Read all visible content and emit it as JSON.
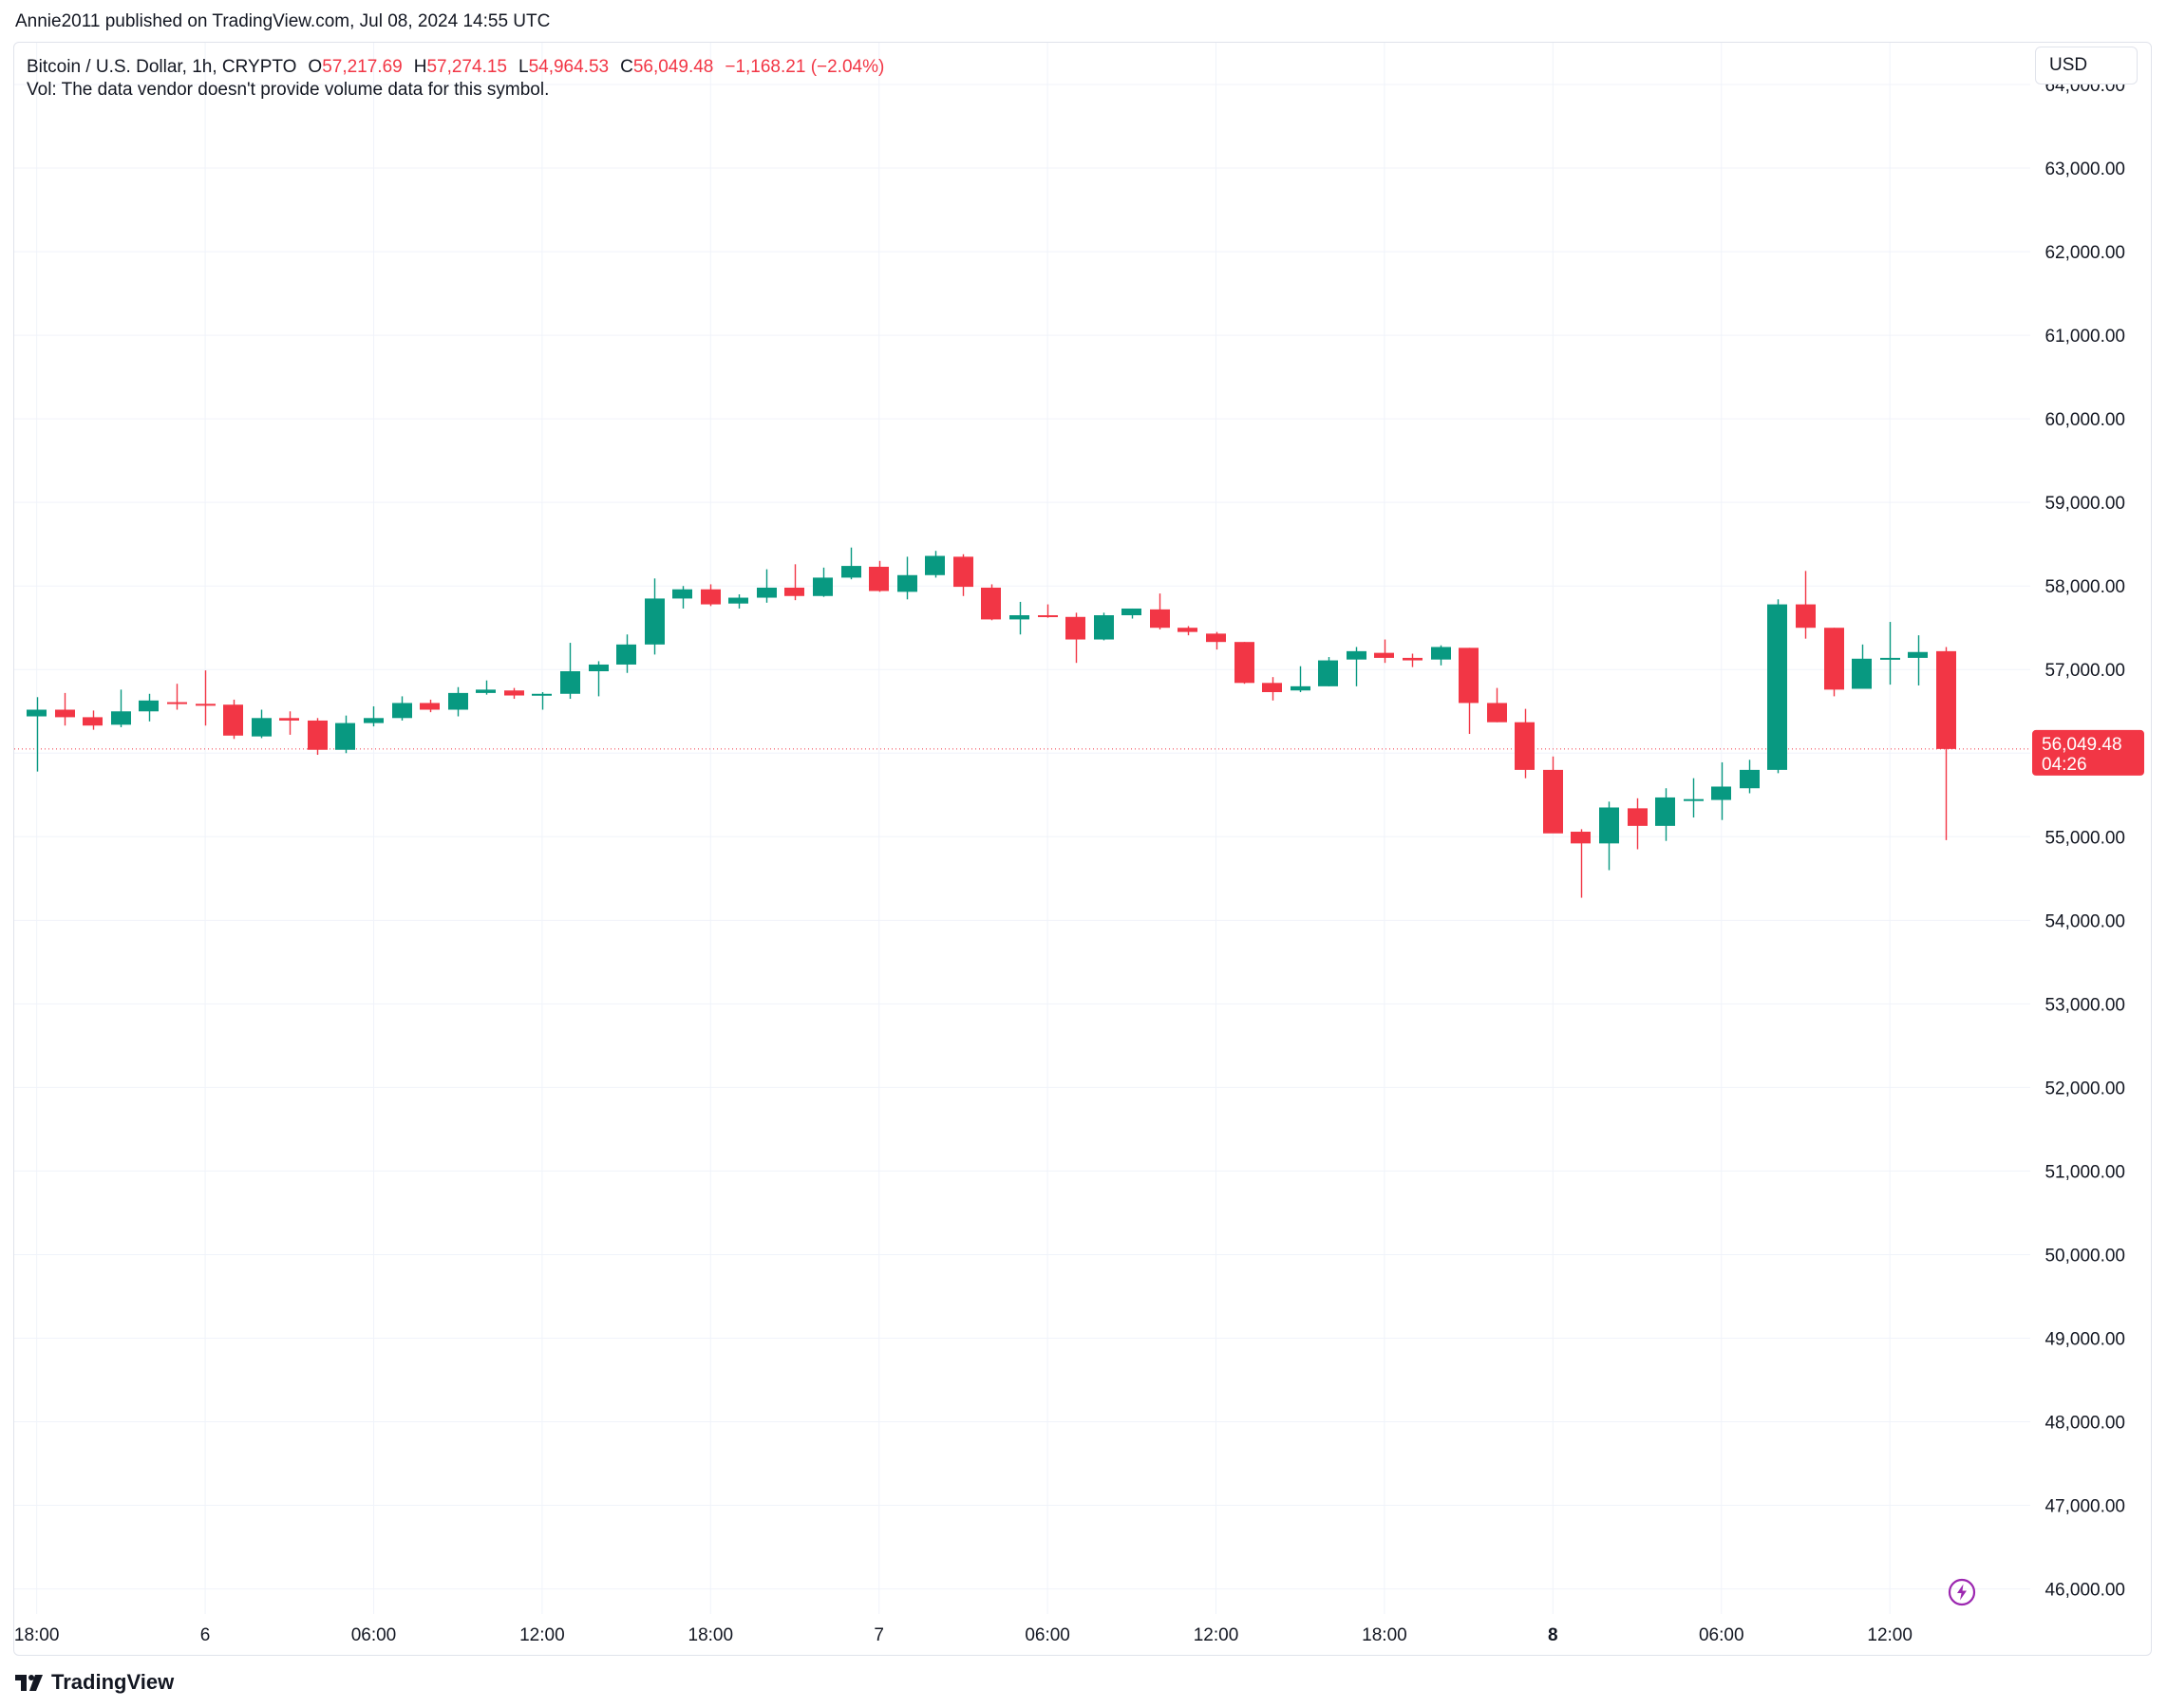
{
  "published_line": "Annie2011 published on TradingView.com, Jul 08, 2024 14:55 UTC",
  "legend": {
    "symbol": "Bitcoin / U.S. Dollar, 1h, CRYPTO",
    "o_label": "O",
    "o_value": "57,217.69",
    "h_label": "H",
    "h_value": "57,274.15",
    "l_label": "L",
    "l_value": "54,964.53",
    "c_label": "C",
    "c_value": "56,049.48",
    "change": "−1,168.21 (−2.04%)"
  },
  "volume_note": "Vol: The data vendor doesn't provide volume data for this symbol.",
  "currency_button": "USD",
  "brand": "TradingView",
  "colors": {
    "up": "#089981",
    "down": "#f23645",
    "grid": "#f0f3fa",
    "axis_text": "#131722"
  },
  "icons": {
    "logo": "tradingview-logo-icon",
    "lightning": "lightning-icon"
  },
  "chart_data": {
    "type": "candlestick",
    "symbol": "Bitcoin / U.S. Dollar",
    "interval": "1h",
    "y_axis": {
      "ylim": [
        45700,
        64500
      ],
      "ticks": [
        "64,000.00",
        "63,000.00",
        "62,000.00",
        "61,000.00",
        "60,000.00",
        "59,000.00",
        "58,000.00",
        "57,000.00",
        "56,000.00",
        "55,000.00",
        "54,000.00",
        "53,000.00",
        "52,000.00",
        "51,000.00",
        "50,000.00",
        "49,000.00",
        "48,000.00",
        "47,000.00",
        "46,000.00"
      ],
      "tick_values": [
        64000,
        63000,
        62000,
        61000,
        60000,
        59000,
        58000,
        57000,
        56000,
        55000,
        54000,
        53000,
        52000,
        51000,
        50000,
        49000,
        48000,
        47000,
        46000
      ],
      "position": "right"
    },
    "x_axis": {
      "ticks": [
        {
          "label": "18:00",
          "index": 0,
          "bold": false
        },
        {
          "label": "6",
          "index": 6,
          "bold": false
        },
        {
          "label": "06:00",
          "index": 12,
          "bold": false
        },
        {
          "label": "12:00",
          "index": 18,
          "bold": false
        },
        {
          "label": "18:00",
          "index": 24,
          "bold": false
        },
        {
          "label": "7",
          "index": 30,
          "bold": false
        },
        {
          "label": "06:00",
          "index": 36,
          "bold": false
        },
        {
          "label": "12:00",
          "index": 42,
          "bold": false
        },
        {
          "label": "18:00",
          "index": 48,
          "bold": false
        },
        {
          "label": "8",
          "index": 54,
          "bold": true
        },
        {
          "label": "06:00",
          "index": 60,
          "bold": false
        },
        {
          "label": "12:00",
          "index": 66,
          "bold": false
        }
      ],
      "range_index": [
        -0.8,
        71
      ]
    },
    "grid": true,
    "candles": [
      [
        56440,
        56670,
        55780,
        56520
      ],
      [
        56520,
        56720,
        56330,
        56430
      ],
      [
        56430,
        56510,
        56280,
        56330
      ],
      [
        56340,
        56760,
        56310,
        56500
      ],
      [
        56500,
        56710,
        56380,
        56630
      ],
      [
        56610,
        56830,
        56520,
        56590
      ],
      [
        56590,
        56990,
        56330,
        56580
      ],
      [
        56580,
        56640,
        56170,
        56210
      ],
      [
        56200,
        56520,
        56180,
        56420
      ],
      [
        56420,
        56500,
        56220,
        56390
      ],
      [
        56390,
        56420,
        55980,
        56040
      ],
      [
        56040,
        56450,
        56000,
        56360
      ],
      [
        56360,
        56560,
        56320,
        56420
      ],
      [
        56420,
        56680,
        56390,
        56600
      ],
      [
        56600,
        56640,
        56490,
        56520
      ],
      [
        56520,
        56790,
        56440,
        56720
      ],
      [
        56720,
        56870,
        56700,
        56760
      ],
      [
        56750,
        56780,
        56650,
        56690
      ],
      [
        56690,
        56730,
        56520,
        56710
      ],
      [
        56710,
        57320,
        56650,
        56980
      ],
      [
        56980,
        57100,
        56680,
        57060
      ],
      [
        57060,
        57420,
        56960,
        57300
      ],
      [
        57300,
        58090,
        57180,
        57850
      ],
      [
        57850,
        58000,
        57730,
        57960
      ],
      [
        57960,
        58020,
        57760,
        57780
      ],
      [
        57790,
        57900,
        57730,
        57860
      ],
      [
        57860,
        58200,
        57800,
        57980
      ],
      [
        57980,
        58260,
        57830,
        57880
      ],
      [
        57880,
        58220,
        57870,
        58100
      ],
      [
        58100,
        58460,
        58080,
        58240
      ],
      [
        58230,
        58300,
        57930,
        57940
      ],
      [
        57930,
        58350,
        57840,
        58130
      ],
      [
        58130,
        58420,
        58100,
        58360
      ],
      [
        58350,
        58380,
        57880,
        57990
      ],
      [
        57980,
        58020,
        57590,
        57600
      ],
      [
        57600,
        57810,
        57420,
        57650
      ],
      [
        57650,
        57780,
        57620,
        57640
      ],
      [
        57630,
        57680,
        57080,
        57360
      ],
      [
        57360,
        57680,
        57350,
        57650
      ],
      [
        57650,
        57730,
        57610,
        57730
      ],
      [
        57720,
        57910,
        57480,
        57500
      ],
      [
        57500,
        57520,
        57410,
        57450
      ],
      [
        57430,
        57450,
        57240,
        57330
      ],
      [
        57330,
        57330,
        56830,
        56840
      ],
      [
        56840,
        56910,
        56630,
        56730
      ],
      [
        56750,
        57040,
        56730,
        56800
      ],
      [
        56800,
        57150,
        56800,
        57110
      ],
      [
        57120,
        57270,
        56800,
        57220
      ],
      [
        57200,
        57360,
        57080,
        57140
      ],
      [
        57140,
        57190,
        57030,
        57110
      ],
      [
        57120,
        57290,
        57050,
        57270
      ],
      [
        57260,
        57260,
        56230,
        56600
      ],
      [
        56600,
        56780,
        56370,
        56370
      ],
      [
        56370,
        56530,
        55700,
        55800
      ],
      [
        55800,
        55960,
        55050,
        55040
      ],
      [
        55060,
        55090,
        54270,
        54920
      ],
      [
        54920,
        55420,
        54600,
        55350
      ],
      [
        55340,
        55460,
        54850,
        55130
      ],
      [
        55130,
        55580,
        54950,
        55470
      ],
      [
        55450,
        55700,
        55230,
        55450
      ],
      [
        55440,
        55890,
        55200,
        55600
      ],
      [
        55580,
        55920,
        55520,
        55800
      ],
      [
        55800,
        57840,
        55760,
        57780
      ],
      [
        57780,
        58180,
        57370,
        57500
      ],
      [
        57500,
        57500,
        56680,
        56760
      ],
      [
        56770,
        57300,
        56770,
        57130
      ],
      [
        57130,
        57570,
        56820,
        57140
      ],
      [
        57140,
        57410,
        56810,
        57210
      ],
      [
        57220,
        57270,
        54960,
        56050
      ]
    ],
    "last_price": {
      "value": 56049.48,
      "label": "56,049.48",
      "countdown": "04:26"
    }
  }
}
